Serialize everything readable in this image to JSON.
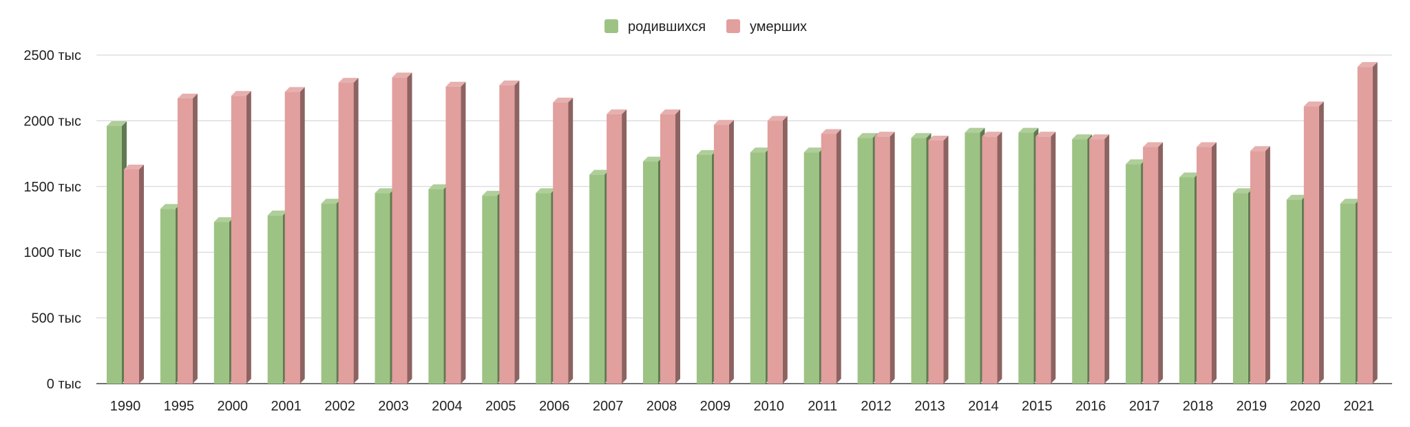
{
  "chart_data": {
    "type": "bar",
    "title": "",
    "xlabel": "",
    "ylabel": "",
    "ylim": [
      0,
      2500
    ],
    "y_ticks": [
      0,
      500,
      1000,
      1500,
      2000,
      2500
    ],
    "y_tick_suffix": " тыс",
    "grid": true,
    "legend_position": "top",
    "categories": [
      "1990",
      "1995",
      "2000",
      "2001",
      "2002",
      "2003",
      "2004",
      "2005",
      "2006",
      "2007",
      "2008",
      "2009",
      "2010",
      "2011",
      "2012",
      "2013",
      "2014",
      "2015",
      "2016",
      "2017",
      "2018",
      "2019",
      "2020",
      "2021"
    ],
    "series": [
      {
        "name": "родившихся",
        "color": "#9dc384",
        "values": [
          1960,
          1330,
          1230,
          1280,
          1370,
          1450,
          1480,
          1430,
          1450,
          1590,
          1690,
          1740,
          1760,
          1760,
          1870,
          1870,
          1910,
          1910,
          1860,
          1670,
          1570,
          1450,
          1400,
          1370
        ]
      },
      {
        "name": "умерших",
        "color": "#e19f9d",
        "values": [
          1630,
          2170,
          2190,
          2220,
          2290,
          2330,
          2260,
          2270,
          2140,
          2050,
          2050,
          1970,
          2000,
          1900,
          1880,
          1850,
          1880,
          1880,
          1860,
          1800,
          1800,
          1770,
          2110,
          2410
        ]
      }
    ]
  }
}
